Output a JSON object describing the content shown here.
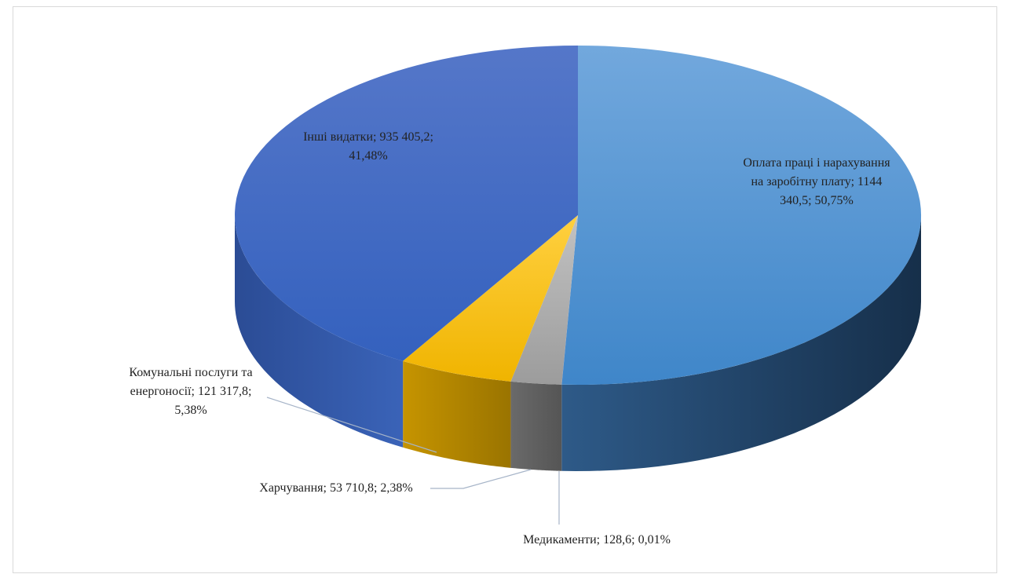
{
  "chart_data": {
    "type": "pie",
    "subtype": "3d-pie",
    "title": "",
    "legend": "none",
    "slices": [
      {
        "name": "Оплата праці і нарахування на заробітну плату",
        "value": 1144340.5,
        "percent": 50.75,
        "color": "#5b9bd5",
        "label_lines": [
          "Оплата праці і нарахування",
          "на заробітну плату; 1144",
          "340,5; 50,75%"
        ]
      },
      {
        "name": "Медикаменти",
        "value": 128.6,
        "percent": 0.01,
        "color": "#4472c4",
        "label_lines": [
          "Медикаменти;  128,6; 0,01%"
        ]
      },
      {
        "name": "Харчування",
        "value": 53710.8,
        "percent": 2.38,
        "color": "#a5a5a5",
        "label_lines": [
          "Харчування; 53 710,8; 2,38%"
        ]
      },
      {
        "name": "Комунальні послуги та енергоносії",
        "value": 121317.8,
        "percent": 5.38,
        "color": "#ffc000",
        "label_lines": [
          "Комунальні послуги та",
          "енергоносії; 121 317,8;",
          "5,38%"
        ]
      },
      {
        "name": "Інші видатки",
        "value": 935405.2,
        "percent": 41.48,
        "color": "#4472c4",
        "label_lines": [
          "Інші видатки; 935 405,2;",
          "41,48%"
        ]
      }
    ]
  }
}
